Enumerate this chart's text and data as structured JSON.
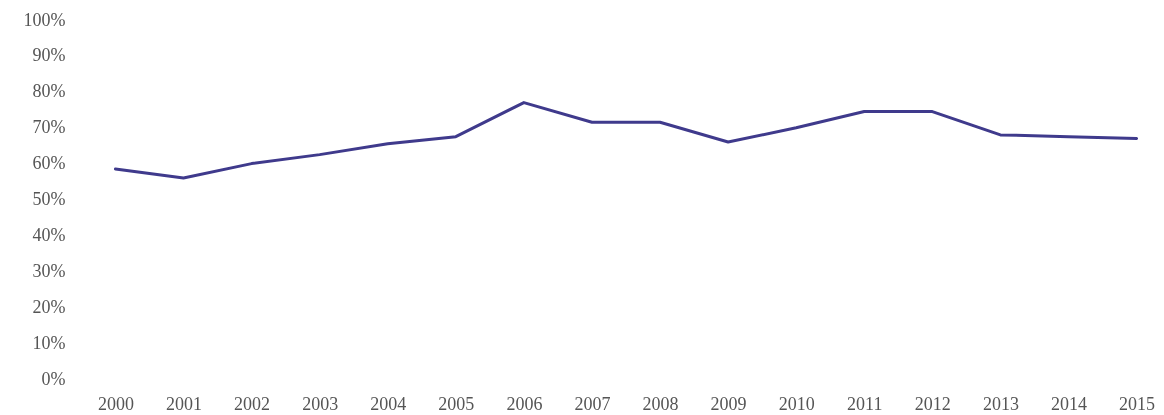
{
  "chart_data": {
    "type": "line",
    "categories": [
      "2000",
      "2001",
      "2002",
      "2003",
      "2004",
      "2005",
      "2006",
      "2007",
      "2008",
      "2009",
      "2010",
      "2011",
      "2012",
      "2013",
      "2014",
      "2015"
    ],
    "series": [
      {
        "color": "#3f3a8c",
        "values": [
          58.5,
          56,
          60,
          62.5,
          65.5,
          67.5,
          77,
          71.5,
          71.5,
          66,
          70,
          74.5,
          74.5,
          68,
          67.5,
          67
        ]
      }
    ],
    "ylim": [
      0,
      100
    ],
    "yticks": [
      {
        "value": 0,
        "label": "0%"
      },
      {
        "value": 10,
        "label": "10%"
      },
      {
        "value": 20,
        "label": "20%"
      },
      {
        "value": 30,
        "label": "30%"
      },
      {
        "value": 40,
        "label": "40%"
      },
      {
        "value": 50,
        "label": "50%"
      },
      {
        "value": 60,
        "label": "60%"
      },
      {
        "value": 70,
        "label": "70%"
      },
      {
        "value": 80,
        "label": "80%"
      },
      {
        "value": 90,
        "label": "90%"
      },
      {
        "value": 100,
        "label": "100%"
      }
    ],
    "marker": "none",
    "line_style": "solid"
  }
}
